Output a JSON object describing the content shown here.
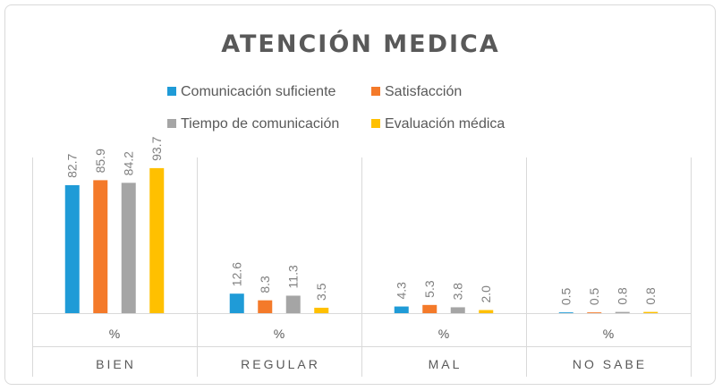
{
  "chart_data": {
    "type": "bar",
    "title": "ATENCIÓN  MEDICA",
    "categories": [
      "BIEN",
      "REGULAR",
      "MAL",
      "NO SABE"
    ],
    "category_unit": "%",
    "series": [
      {
        "name": "Comunicación suficiente",
        "color": "#1f9bd7",
        "values": [
          82.7,
          12.6,
          4.3,
          0.5
        ],
        "labels": [
          "82.7",
          "12.6",
          "4.3",
          "0.5"
        ]
      },
      {
        "name": "Satisfacción",
        "color": "#f47a2a",
        "values": [
          85.9,
          8.3,
          5.3,
          0.5
        ],
        "labels": [
          "85.9",
          "8.3",
          "5.3",
          "0.5"
        ]
      },
      {
        "name": "Tiempo de comunicación",
        "color": "#a5a5a5",
        "values": [
          84.2,
          11.3,
          3.8,
          0.8
        ],
        "labels": [
          "84.2",
          "11.3",
          "3.8",
          "0.8"
        ]
      },
      {
        "name": "Evaluación médica",
        "color": "#ffc000",
        "values": [
          93.7,
          3.5,
          2.0,
          0.8
        ],
        "labels": [
          "93.7",
          "3.5",
          "2.0",
          "0.8"
        ]
      }
    ],
    "ylim": [
      0,
      100
    ],
    "grid": false,
    "legend_position": "top"
  }
}
